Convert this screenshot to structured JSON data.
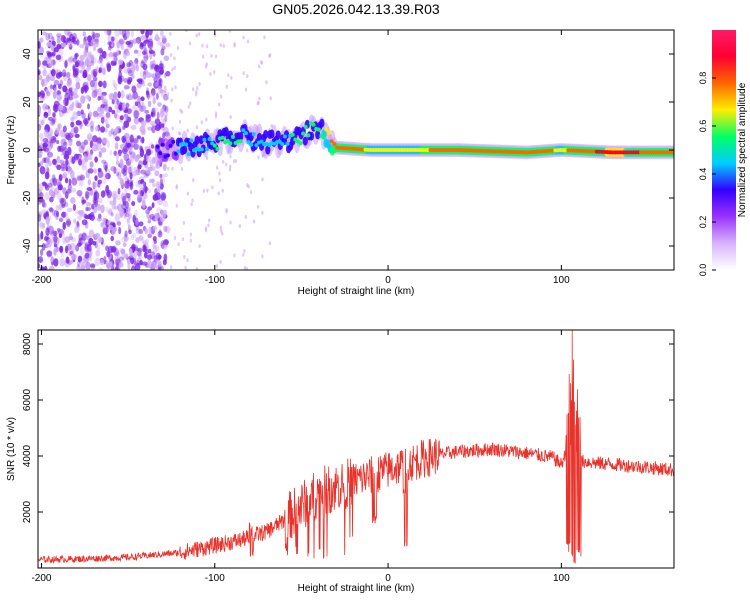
{
  "title": "GN05.2026.042.13.39.R03",
  "colors": {
    "accent": "#e8322a",
    "dots": "#7a22e6",
    "dots_light": "#cfa8f5",
    "axis": "#000000"
  },
  "chart_data": [
    {
      "type": "heatmap",
      "title": "GN05.2026.042.13.39.R03",
      "xlabel": "Height of straight line (km)",
      "ylabel": "Frequency (Hz)",
      "xlim": [
        -202,
        165
      ],
      "ylim": [
        -50,
        50
      ],
      "xticks": [
        -200,
        -100,
        0,
        100
      ],
      "yticks": [
        -40,
        -20,
        0,
        20,
        40
      ],
      "colorbar": {
        "label": "Normalized spectral amplitude",
        "range": [
          0,
          1
        ],
        "ticks": [
          "0.0",
          "0.2",
          "0.4",
          "0.6",
          "0.8"
        ],
        "stops": [
          "#ffffff",
          "#d9b3ff",
          "#9933ff",
          "#3300ff",
          "#00ccff",
          "#00ff66",
          "#ffee00",
          "#ff6600",
          "#ff0033",
          "#ff1a66"
        ]
      },
      "signal_track": [
        {
          "height": -133,
          "freq": 0,
          "amp": 0.3
        },
        {
          "height": -115,
          "freq": 1,
          "amp": 0.45
        },
        {
          "height": -100,
          "freq": 3,
          "amp": 0.5
        },
        {
          "height": -85,
          "freq": 6,
          "amp": 0.5
        },
        {
          "height": -70,
          "freq": 3,
          "amp": 0.45
        },
        {
          "height": -55,
          "freq": 4,
          "amp": 0.5
        },
        {
          "height": -40,
          "freq": 10,
          "amp": 0.5
        },
        {
          "height": -30,
          "freq": 1,
          "amp": 0.8
        },
        {
          "height": -10,
          "freq": 0,
          "amp": 0.7
        },
        {
          "height": 10,
          "freq": 0,
          "amp": 0.7
        },
        {
          "height": 40,
          "freq": 0,
          "amp": 0.75
        },
        {
          "height": 80,
          "freq": -1,
          "amp": 0.8
        },
        {
          "height": 100,
          "freq": 0,
          "amp": 0.7
        },
        {
          "height": 130,
          "freq": -1,
          "amp": 0.9
        },
        {
          "height": 165,
          "freq": -1,
          "amp": 0.75
        }
      ]
    },
    {
      "type": "line",
      "xlabel": "Height of straight line (km)",
      "ylabel": "SNR (10 * v/v)",
      "xlim": [
        -202,
        165
      ],
      "ylim": [
        0,
        8500
      ],
      "xticks": [
        -200,
        -100,
        0,
        100
      ],
      "yticks": [
        2000,
        4000,
        6000,
        8000
      ],
      "series": [
        {
          "name": "SNR",
          "color": "#e8322a",
          "envelope": {
            "x": [
              -202,
              -180,
              -150,
              -120,
              -100,
              -85,
              -70,
              -60,
              -50,
              -40,
              -30,
              -20,
              -10,
              0,
              10,
              20,
              30,
              40,
              60,
              80,
              95,
              100,
              105,
              110,
              115,
              120,
              140,
              165
            ],
            "y": [
              300,
              320,
              380,
              550,
              800,
              1000,
              1300,
              1700,
              2200,
              2700,
              2900,
              3100,
              3300,
              3500,
              3700,
              3900,
              4050,
              4150,
              4250,
              4100,
              3950,
              3700,
              4500,
              3800,
              3800,
              3750,
              3650,
              3500
            ]
          },
          "events": [
            {
              "x": 104,
              "peak": 7000,
              "low": 500
            },
            {
              "x": 107,
              "peak": 8500,
              "low": 100
            },
            {
              "x": 110,
              "peak": 6500,
              "low": 300
            },
            {
              "x": -79,
              "peak": 1700,
              "low": 400
            },
            {
              "x": -8,
              "peak": 4500,
              "low": 1500
            },
            {
              "x": 10,
              "peak": 4400,
              "low": 500
            }
          ]
        }
      ]
    }
  ]
}
